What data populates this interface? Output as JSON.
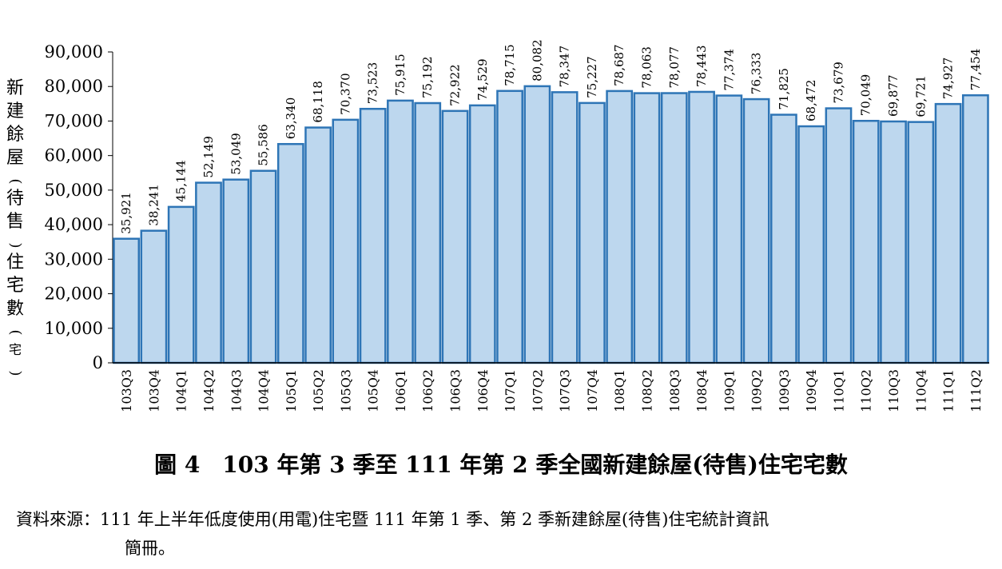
{
  "chart_data": {
    "type": "bar",
    "ylabel": "新建餘屋(待售)住宅數(宅)",
    "ylim": [
      0,
      90000
    ],
    "yticks": [
      "0",
      "10,000",
      "20,000",
      "30,000",
      "40,000",
      "50,000",
      "60,000",
      "70,000",
      "80,000",
      "90,000"
    ],
    "grid": false,
    "categories": [
      "103Q3",
      "103Q4",
      "104Q1",
      "104Q2",
      "104Q3",
      "104Q4",
      "105Q1",
      "105Q2",
      "105Q3",
      "105Q4",
      "106Q1",
      "106Q2",
      "106Q3",
      "106Q4",
      "107Q1",
      "107Q2",
      "107Q3",
      "107Q4",
      "108Q1",
      "108Q2",
      "108Q3",
      "108Q4",
      "109Q1",
      "109Q2",
      "109Q3",
      "109Q4",
      "110Q1",
      "110Q2",
      "110Q3",
      "110Q4",
      "111Q1",
      "111Q2"
    ],
    "values": [
      35921,
      38241,
      45144,
      52149,
      53049,
      55586,
      63340,
      68118,
      70370,
      73523,
      75915,
      75192,
      72922,
      74529,
      78715,
      80082,
      78347,
      75227,
      78687,
      78063,
      78077,
      78443,
      77374,
      76333,
      71825,
      68472,
      73679,
      70049,
      69877,
      69721,
      74927,
      77454
    ],
    "labels": [
      "35,921",
      "38,241",
      "45,144",
      "52,149",
      "53,049",
      "55,586",
      "63,340",
      "68,118",
      "70,370",
      "73,523",
      "75,915",
      "75,192",
      "72,922",
      "74,529",
      "78,715",
      "80,082",
      "78,347",
      "75,227",
      "78,687",
      "78,063",
      "78,077",
      "78,443",
      "77,374",
      "76,333",
      "71,825",
      "68,472",
      "73,679",
      "70,049",
      "69,877",
      "69,721",
      "74,927",
      "77,454"
    ],
    "colors": {
      "bar_fill": "#bdd7ee",
      "bar_edge": "#2e75b6"
    }
  },
  "caption": "圖 4　103 年第 3 季至 111 年第 2 季全國新建餘屋(待售)住宅宅數",
  "source": {
    "line1": "資料來源：111 年上半年低度使用(用電)住宅暨 111 年第 1 季、第 2 季新建餘屋(待售)住宅統計資訊",
    "line2": "簡冊。"
  }
}
